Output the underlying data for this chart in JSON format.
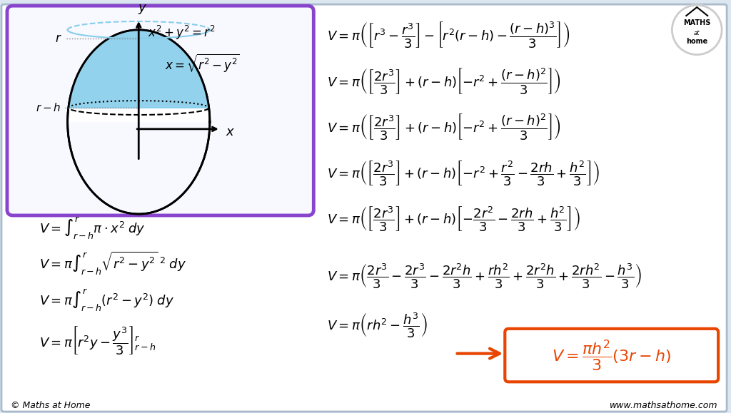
{
  "bg_color": "#dce6f0",
  "main_bg": "#f0f4f8",
  "content_bg": "#ffffff",
  "title_color": "#000000",
  "formula_color": "#000000",
  "final_box_color": "#e84500",
  "final_text_color": "#e84500",
  "arrow_color": "#e84500",
  "sphere_fill": "#87CEEB",
  "sphere_border": "#000000",
  "diagram_box_color": "#8844cc",
  "diagram_bg": "#f8f8ff",
  "left_formulas": [
    "$V = \\int_{r-h}^{r} \\pi \\cdot x^2 \\; dy$",
    "$V = \\pi \\int_{r-h}^{r} \\sqrt{r^2 - y^2}^{\\;2} \\; dy$",
    "$V = \\pi \\int_{r-h}^{r} (r^2 - y^2) \\; dy$",
    "$V = \\pi \\left[ r^2 y - \\dfrac{y^3}{3} \\right]_{r-h}^{r}$"
  ],
  "right_formulas": [
    "$V = \\pi \\left( \\left[ r^3 - \\dfrac{r^3}{3} \\right] - \\left[ r^2(r-h) - \\dfrac{(r-h)^3}{3} \\right] \\right)$",
    "$V = \\pi \\left( \\left[ \\dfrac{2r^3}{3} \\right] + (r-h) \\left[ -r^2 + \\dfrac{(r-h)^2}{3} \\right] \\right)$",
    "$V = \\pi \\left( \\left[ \\dfrac{2r^3}{3} \\right] + (r-h) \\left[ -r^2 + \\dfrac{(r-h)^2}{3} \\right] \\right)$",
    "$V = \\pi \\left( \\left[ \\dfrac{2r^3}{3} \\right] + (r-h) \\left[ -r^2 + \\dfrac{r^2}{3} - \\dfrac{2rh}{3} + \\dfrac{h^2}{3} \\right] \\right)$",
    "$V = \\pi \\left( \\left[ \\dfrac{2r^3}{3} \\right] + (r-h) \\left[ -\\dfrac{2r^2}{3} - \\dfrac{2rh}{3} + \\dfrac{h^2}{3} \\right] \\right)$",
    "$V = \\pi \\left( \\dfrac{2r^3}{3} - \\dfrac{2r^3}{3} - \\dfrac{2r^2 h}{3} + \\dfrac{rh^2}{3} + \\dfrac{2r^2 h}{3} + \\dfrac{2rh^2}{3} - \\dfrac{h^3}{3} \\right)$",
    "$V = \\pi \\left( rh^2 - \\dfrac{h^3}{3} \\right)$"
  ],
  "final_formula": "$V = \\dfrac{\\pi h^2}{3}(3r - h)$",
  "footer_left": "© Maths at Home",
  "footer_right": "www.mathsathome.com"
}
